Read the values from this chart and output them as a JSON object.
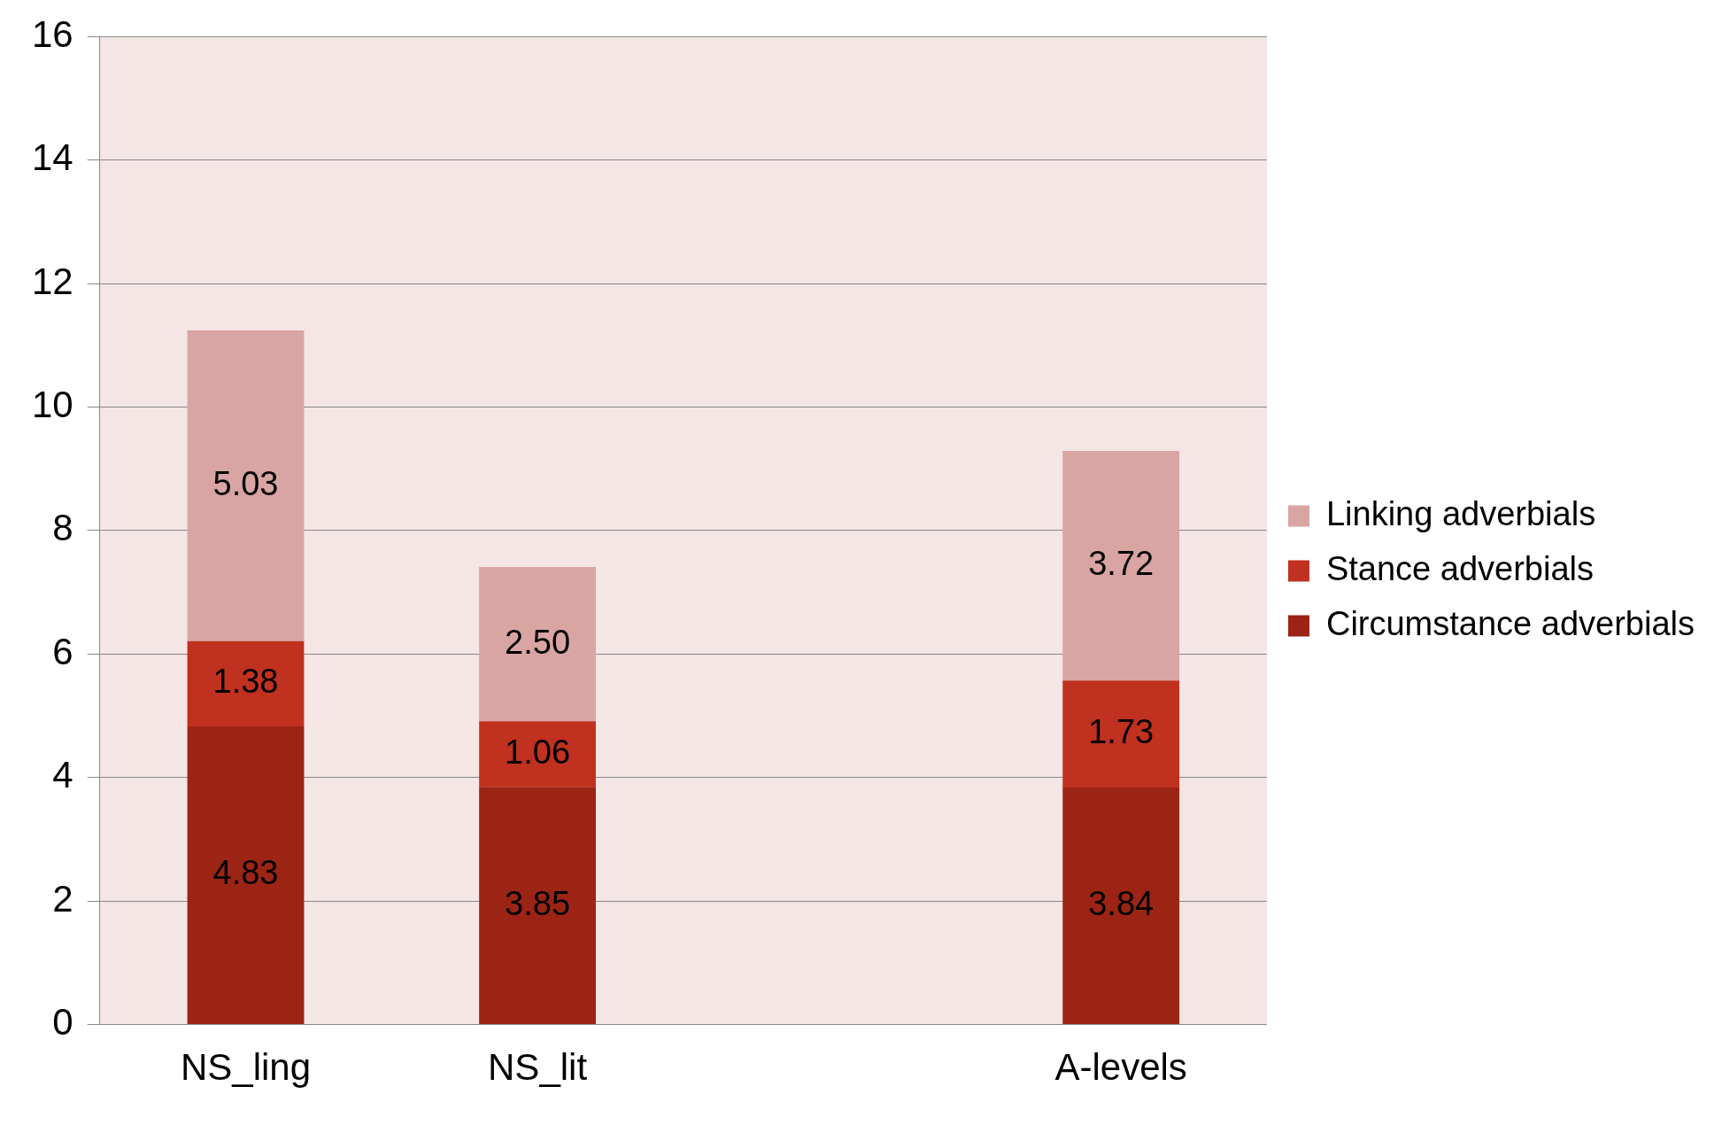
{
  "chart_data": {
    "type": "bar",
    "stacked": true,
    "categories": [
      "NS_ling",
      "NS_lit",
      null,
      "A-levels"
    ],
    "series": [
      {
        "name": "Circumstance adverbials",
        "color": "#9c2414",
        "values": [
          4.83,
          3.85,
          null,
          3.84
        ],
        "value_labels": [
          "4.83",
          "3.85",
          null,
          "3.84"
        ]
      },
      {
        "name": "Stance adverbials",
        "color": "#c0311f",
        "values": [
          1.38,
          1.06,
          null,
          1.73
        ],
        "value_labels": [
          "1.38",
          "1.06",
          null,
          "1.73"
        ]
      },
      {
        "name": "Linking adverbials",
        "color": "#d9a5a3",
        "values": [
          5.03,
          2.5,
          null,
          3.72
        ],
        "value_labels": [
          "5.03",
          "2.50",
          null,
          "3.72"
        ]
      }
    ],
    "ylim": [
      0,
      16
    ],
    "yticks": [
      0,
      2,
      4,
      6,
      8,
      10,
      12,
      14,
      16
    ],
    "grid": "y",
    "legend": "right"
  }
}
